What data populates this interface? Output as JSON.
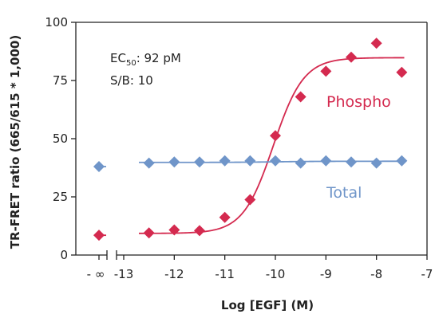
{
  "chart_data": {
    "type": "scatter",
    "xlabel": "Log [EGF] (M)",
    "ylabel": "TR-FRET ratio (665/615 * 1,000)",
    "xlim": [
      -13,
      -7
    ],
    "ylim": [
      0,
      100
    ],
    "x_ticks": [
      "-13",
      "-12",
      "-11",
      "-10",
      "-9",
      "-8",
      "-7"
    ],
    "y_ticks": [
      "0",
      "25",
      "50",
      "75",
      "100"
    ],
    "baseline_tick_label": "- ∞",
    "annotations": {
      "ec50_prefix": "EC",
      "ec50_sub": "50",
      "ec50_value": ": 92 pM",
      "sb": "S/B: 10"
    },
    "series": [
      {
        "name": "Phospho",
        "color": "#d42a4f",
        "marker": "diamond",
        "baseline_y": 8.5,
        "x": [
          -12.5,
          -12.0,
          -11.5,
          -11.0,
          -10.5,
          -10.0,
          -9.5,
          -9.0,
          -8.5,
          -8.0,
          -7.5
        ],
        "y": [
          9.5,
          10.8,
          10.5,
          16.2,
          23.8,
          51.3,
          68.0,
          79.0,
          85.0,
          91.0,
          78.5
        ],
        "fit": {
          "bottom": 9.3,
          "top": 84.8,
          "log_ec50": -10.04,
          "hill": 1.45
        }
      },
      {
        "name": "Total",
        "color": "#6f95c9",
        "marker": "diamond",
        "baseline_y": 38.0,
        "x": [
          -12.5,
          -12.0,
          -11.5,
          -11.0,
          -10.5,
          -10.0,
          -9.5,
          -9.0,
          -8.5,
          -8.0,
          -7.5
        ],
        "y": [
          39.5,
          40.0,
          40.0,
          40.5,
          40.5,
          40.5,
          39.5,
          40.5,
          40.0,
          39.5,
          40.5
        ],
        "fit": {
          "bottom": 39.8,
          "top": 40.3,
          "log_ec50": -10.0,
          "hill": 1.0
        }
      }
    ]
  }
}
